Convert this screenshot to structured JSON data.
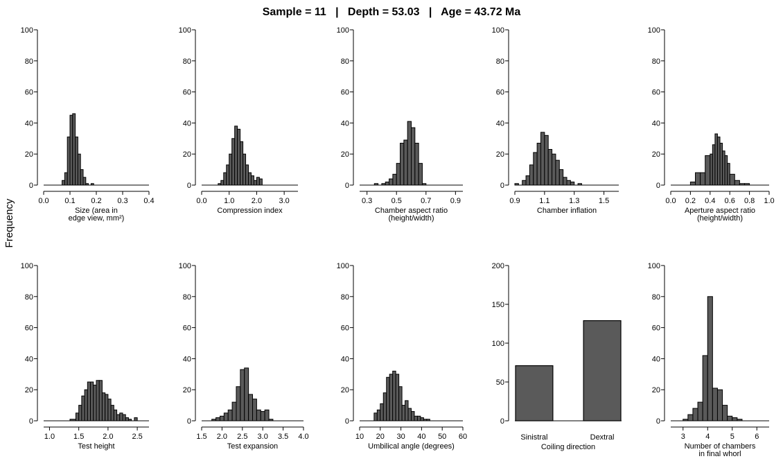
{
  "figure_title": "Sample = 11   |   Depth = 53.03   |   Age = 43.72 Ma",
  "shared_ylabel": "Frequency",
  "chart_data": [
    {
      "type": "bar",
      "xlabel": [
        "Size (area in",
        "edge view, mm²)"
      ],
      "xlim": [
        0.0,
        0.4
      ],
      "xticks": [
        "0.0",
        "0.1",
        "0.2",
        "0.3",
        "0.4"
      ],
      "ylim": [
        0,
        100
      ],
      "yticks": [
        "0",
        "20",
        "40",
        "60",
        "80",
        "100"
      ],
      "bin_edges": [
        0.05,
        0.07,
        0.08,
        0.09,
        0.1,
        0.11,
        0.12,
        0.13,
        0.14,
        0.15,
        0.16,
        0.17,
        0.18,
        0.19,
        0.2
      ],
      "values": [
        0,
        3,
        8,
        31,
        45,
        46,
        31,
        20,
        10,
        5,
        1,
        0,
        1,
        0
      ]
    },
    {
      "type": "bar",
      "xlabel": [
        "Compression index"
      ],
      "xlim": [
        0.0,
        3.5
      ],
      "xticks": [
        "0.0",
        "1.0",
        "2.0",
        "3.0"
      ],
      "ylim": [
        0,
        100
      ],
      "yticks": [
        "0",
        "20",
        "40",
        "60",
        "80",
        "100"
      ],
      "bin_edges": [
        0.6,
        0.7,
        0.8,
        0.9,
        1.0,
        1.1,
        1.2,
        1.3,
        1.4,
        1.5,
        1.6,
        1.7,
        1.8,
        1.9,
        2.0,
        2.1,
        2.2
      ],
      "values": [
        1,
        3,
        8,
        13,
        20,
        30,
        38,
        36,
        28,
        20,
        13,
        8,
        6,
        3,
        5,
        4
      ]
    },
    {
      "type": "bar",
      "xlabel": [
        "Chamber aspect ratio",
        "(height/width)"
      ],
      "xlim": [
        0.25,
        0.95
      ],
      "xticks": [
        "0.3",
        "0.5",
        "0.7",
        "0.9"
      ],
      "ylim": [
        0,
        100
      ],
      "yticks": [
        "0",
        "20",
        "40",
        "60",
        "80",
        "100"
      ],
      "bin_edges": [
        0.35,
        0.375,
        0.4,
        0.425,
        0.45,
        0.475,
        0.5,
        0.525,
        0.55,
        0.575,
        0.6,
        0.625,
        0.65,
        0.675,
        0.7
      ],
      "values": [
        1,
        0,
        1,
        2,
        4,
        7,
        14,
        27,
        29,
        41,
        37,
        27,
        14,
        1
      ]
    },
    {
      "type": "bar",
      "xlabel": [
        "Chamber inflation"
      ],
      "xlim": [
        0.9,
        1.6
      ],
      "xticks": [
        "0.9",
        "1.1",
        "1.3",
        "1.5"
      ],
      "ylim": [
        0,
        100
      ],
      "yticks": [
        "0",
        "20",
        "40",
        "60",
        "80",
        "100"
      ],
      "bin_edges": [
        0.9,
        0.925,
        0.95,
        0.975,
        1.0,
        1.025,
        1.05,
        1.075,
        1.1,
        1.125,
        1.15,
        1.175,
        1.2,
        1.225,
        1.25,
        1.275,
        1.3,
        1.325,
        1.35,
        1.375,
        1.4
      ],
      "values": [
        1,
        0,
        3,
        6,
        13,
        21,
        27,
        34,
        32,
        23,
        20,
        16,
        10,
        5,
        3,
        2,
        0,
        1,
        0,
        0
      ]
    },
    {
      "type": "bar",
      "xlabel": [
        "Aperture aspect ratio",
        "(height/width)"
      ],
      "xlim": [
        0.0,
        1.0
      ],
      "xticks": [
        "0.0",
        "0.2",
        "0.4",
        "0.6",
        "0.8",
        "1.0"
      ],
      "ylim": [
        0,
        100
      ],
      "yticks": [
        "0",
        "20",
        "40",
        "60",
        "80",
        "100"
      ],
      "bin_edges": [
        0.2,
        0.25,
        0.3,
        0.35,
        0.4,
        0.425,
        0.45,
        0.475,
        0.5,
        0.525,
        0.55,
        0.575,
        0.6,
        0.65,
        0.7,
        0.75,
        0.8
      ],
      "values": [
        2,
        8,
        8,
        19,
        20,
        26,
        33,
        31,
        27,
        22,
        19,
        14,
        7,
        3,
        1,
        1
      ]
    },
    {
      "type": "bar",
      "xlabel": [
        "Test height"
      ],
      "xlim": [
        0.9,
        2.7
      ],
      "xticks": [
        "1.0",
        "1.5",
        "2.0",
        "2.5"
      ],
      "ylim": [
        0,
        100
      ],
      "yticks": [
        "0",
        "20",
        "40",
        "60",
        "80",
        "100"
      ],
      "bin_edges": [
        1.35,
        1.45,
        1.5,
        1.55,
        1.6,
        1.65,
        1.7,
        1.75,
        1.8,
        1.85,
        1.9,
        1.95,
        2.0,
        2.05,
        2.1,
        2.15,
        2.2,
        2.25,
        2.3,
        2.35,
        2.4,
        2.45,
        2.5
      ],
      "values": [
        1,
        5,
        10,
        16,
        20,
        25,
        25,
        23,
        26,
        26,
        18,
        17,
        14,
        10,
        7,
        4,
        5,
        4,
        2,
        1,
        0,
        2
      ]
    },
    {
      "type": "bar",
      "xlabel": [
        "Test expansion"
      ],
      "xlim": [
        1.5,
        4.0
      ],
      "xticks": [
        "1.5",
        "2.0",
        "2.5",
        "3.0",
        "3.5",
        "4.0"
      ],
      "ylim": [
        0,
        100
      ],
      "yticks": [
        "0",
        "20",
        "40",
        "60",
        "80",
        "100"
      ],
      "bin_edges": [
        1.75,
        1.85,
        1.95,
        2.05,
        2.15,
        2.25,
        2.35,
        2.45,
        2.55,
        2.65,
        2.75,
        2.85,
        2.95,
        3.05,
        3.15,
        3.25
      ],
      "values": [
        1,
        2,
        3,
        5,
        7,
        12,
        22,
        33,
        34,
        17,
        14,
        7,
        6,
        7,
        1
      ]
    },
    {
      "type": "bar",
      "xlabel": [
        "Umbilical angle (degrees)"
      ],
      "xlim": [
        10,
        60
      ],
      "xticks": [
        "10",
        "20",
        "30",
        "40",
        "50",
        "60"
      ],
      "ylim": [
        0,
        100
      ],
      "yticks": [
        "0",
        "20",
        "40",
        "60",
        "80",
        "100"
      ],
      "bin_edges": [
        17,
        18.5,
        20,
        21.5,
        23,
        24.5,
        26,
        27.5,
        29,
        30.5,
        32,
        33.5,
        35,
        36.5,
        38,
        39.5,
        41,
        42.5,
        44
      ],
      "values": [
        5,
        7,
        11,
        18,
        28,
        30,
        32,
        30,
        22,
        10,
        13,
        8,
        6,
        3,
        3,
        2,
        1,
        1
      ]
    },
    {
      "type": "bar",
      "xlabel": [
        "Coiling direction"
      ],
      "categories": [
        "Sinistral",
        "Dextral"
      ],
      "values": [
        71,
        129
      ],
      "ylim": [
        0,
        200
      ],
      "yticks": [
        "0",
        "50",
        "100",
        "150",
        "200"
      ]
    },
    {
      "type": "bar",
      "xlabel": [
        "Number of chambers",
        "in final whorl"
      ],
      "xlim": [
        2.5,
        6.5
      ],
      "xticks": [
        "3",
        "4",
        "5",
        "6"
      ],
      "ylim": [
        0,
        100
      ],
      "yticks": [
        "0",
        "20",
        "40",
        "60",
        "80",
        "100"
      ],
      "bin_edges": [
        3.0,
        3.2,
        3.4,
        3.6,
        3.8,
        4.0,
        4.2,
        4.4,
        4.6,
        4.8,
        5.0,
        5.2,
        5.4,
        5.6
      ],
      "values": [
        1,
        4,
        8,
        12,
        42,
        80,
        21,
        20,
        10,
        3,
        2,
        1,
        0
      ]
    }
  ]
}
